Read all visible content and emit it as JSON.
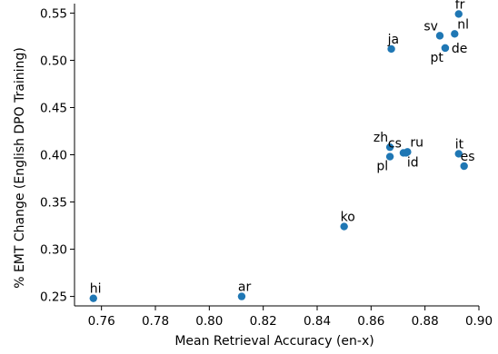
{
  "chart_data": {
    "type": "scatter",
    "xlabel": "Mean Retrieval Accuracy (en-x)",
    "ylabel": "% EMT Change (English DPO Training)",
    "xlim": [
      0.75,
      0.9
    ],
    "ylim": [
      0.24,
      0.56
    ],
    "xticks": [
      0.76,
      0.78,
      0.8,
      0.82,
      0.84,
      0.86,
      0.88,
      0.9
    ],
    "yticks": [
      0.25,
      0.3,
      0.35,
      0.4,
      0.45,
      0.5,
      0.55
    ],
    "xtick_labels": [
      "0.76",
      "0.78",
      "0.80",
      "0.82",
      "0.84",
      "0.86",
      "0.88",
      "0.90"
    ],
    "ytick_labels": [
      "0.25",
      "0.30",
      "0.35",
      "0.40",
      "0.45",
      "0.50",
      "0.55"
    ],
    "grid": false,
    "marker_color": "#1f77b4",
    "points": [
      {
        "label": "fr",
        "x": 0.8925,
        "y": 0.549,
        "label_pos": "above"
      },
      {
        "label": "nl",
        "x": 0.891,
        "y": 0.528,
        "label_pos": "upper-right"
      },
      {
        "label": "sv",
        "x": 0.8855,
        "y": 0.526,
        "label_pos": "upper-left"
      },
      {
        "label": "de",
        "x": 0.8875,
        "y": 0.513,
        "label_pos": "right"
      },
      {
        "label": "pt",
        "x": 0.8875,
        "y": 0.513,
        "label_pos": "lower-left"
      },
      {
        "label": "ja",
        "x": 0.8675,
        "y": 0.512,
        "label_pos": "above"
      },
      {
        "label": "zh",
        "x": 0.867,
        "y": 0.408,
        "label_pos": "upper-left"
      },
      {
        "label": "cs",
        "x": 0.872,
        "y": 0.402,
        "label_pos": "upper-left"
      },
      {
        "label": "ru",
        "x": 0.8735,
        "y": 0.403,
        "label_pos": "upper-right"
      },
      {
        "label": "pl",
        "x": 0.867,
        "y": 0.398,
        "label_pos": "lower-left"
      },
      {
        "label": "id",
        "x": 0.873,
        "y": 0.402,
        "label_pos": "lower-right"
      },
      {
        "label": "it",
        "x": 0.8925,
        "y": 0.401,
        "label_pos": "above"
      },
      {
        "label": "es",
        "x": 0.8945,
        "y": 0.388,
        "label_pos": "above"
      },
      {
        "label": "ko",
        "x": 0.85,
        "y": 0.324,
        "label_pos": "above"
      },
      {
        "label": "ar",
        "x": 0.812,
        "y": 0.25,
        "label_pos": "above"
      },
      {
        "label": "hi",
        "x": 0.757,
        "y": 0.248,
        "label_pos": "above"
      }
    ]
  }
}
